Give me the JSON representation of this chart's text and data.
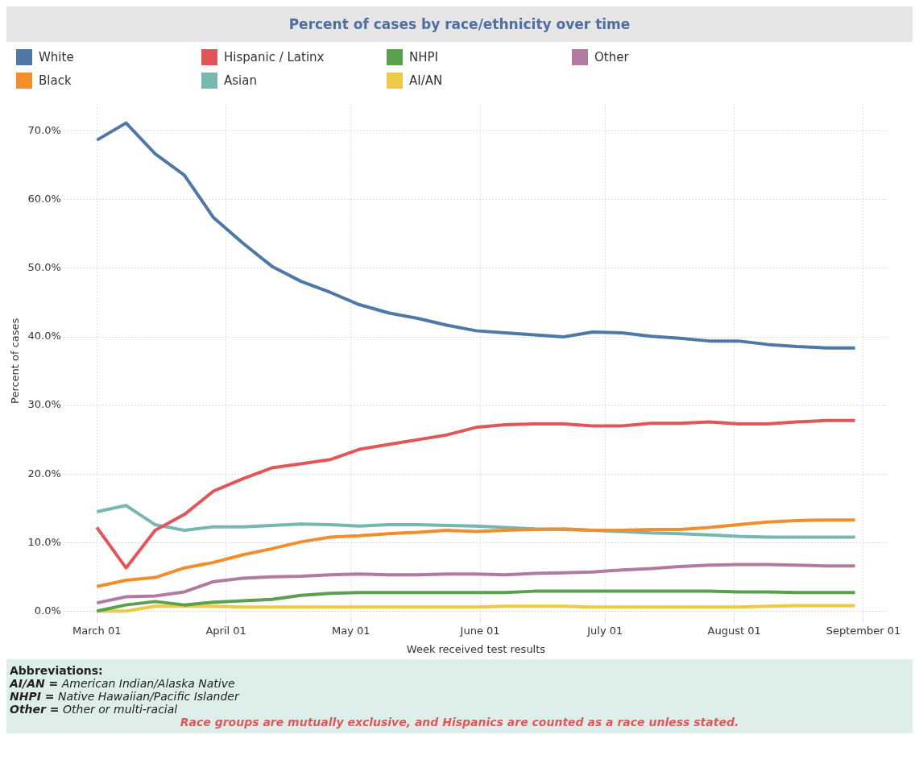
{
  "chart_data": {
    "type": "line",
    "title": "Percent of cases by race/ethnicity over time",
    "xlabel": "Week received test results",
    "ylabel": "Percent of cases",
    "x": [
      "--03-01",
      "--03-08",
      "--03-15",
      "--03-22",
      "--03-29",
      "--04-05",
      "--04-12",
      "--04-19",
      "--04-26",
      "--05-03",
      "--05-10",
      "--05-17",
      "--05-24",
      "--05-31",
      "--06-07",
      "--06-14",
      "--06-21",
      "--06-28",
      "--07-05",
      "--07-12",
      "--07-19",
      "--07-26",
      "--08-02",
      "--08-09",
      "--08-16",
      "--08-23",
      "--08-30"
    ],
    "series": [
      {
        "name": "White",
        "color": "#4e79a7",
        "values": [
          68.7,
          71.2,
          66.7,
          63.6,
          57.4,
          53.7,
          50.3,
          48.1,
          46.5,
          44.7,
          43.5,
          42.7,
          41.7,
          40.9,
          40.6,
          40.3,
          40.0,
          40.7,
          40.6,
          40.1,
          39.8,
          39.4,
          39.4,
          38.9,
          38.6,
          38.4,
          38.4
        ]
      },
      {
        "name": "Black",
        "color": "#f28e2b",
        "values": [
          3.6,
          4.5,
          4.9,
          6.3,
          7.1,
          8.2,
          9.1,
          10.1,
          10.8,
          11.0,
          11.3,
          11.5,
          11.8,
          11.6,
          11.8,
          11.9,
          12.0,
          11.8,
          11.8,
          11.9,
          11.9,
          12.2,
          12.6,
          13.0,
          13.2,
          13.3,
          13.3
        ]
      },
      {
        "name": "Hispanic / Latinx",
        "color": "#e15759",
        "values": [
          12.2,
          6.3,
          11.8,
          14.1,
          17.5,
          19.3,
          20.9,
          21.5,
          22.1,
          23.6,
          24.3,
          25.0,
          25.7,
          26.8,
          27.2,
          27.3,
          27.3,
          27.0,
          27.0,
          27.4,
          27.4,
          27.6,
          27.3,
          27.3,
          27.6,
          27.8,
          27.8
        ]
      },
      {
        "name": "Asian",
        "color": "#76b7b2",
        "values": [
          14.5,
          15.4,
          12.6,
          11.8,
          12.3,
          12.3,
          12.5,
          12.7,
          12.6,
          12.4,
          12.6,
          12.6,
          12.5,
          12.4,
          12.2,
          12.0,
          11.9,
          11.8,
          11.6,
          11.4,
          11.3,
          11.1,
          10.9,
          10.8,
          10.8,
          10.8,
          10.8
        ]
      },
      {
        "name": "NHPI",
        "color": "#59a14f",
        "values": [
          0.0,
          0.9,
          1.4,
          0.9,
          1.3,
          1.5,
          1.7,
          2.3,
          2.6,
          2.7,
          2.7,
          2.7,
          2.7,
          2.7,
          2.7,
          2.9,
          2.9,
          2.9,
          2.9,
          2.9,
          2.9,
          2.9,
          2.8,
          2.8,
          2.7,
          2.7,
          2.7
        ]
      },
      {
        "name": "AI/AN",
        "color": "#edc948",
        "values": [
          0.0,
          0.0,
          0.7,
          0.7,
          0.7,
          0.6,
          0.6,
          0.6,
          0.6,
          0.6,
          0.6,
          0.6,
          0.6,
          0.6,
          0.7,
          0.7,
          0.7,
          0.6,
          0.6,
          0.6,
          0.6,
          0.6,
          0.6,
          0.7,
          0.8,
          0.8,
          0.8
        ]
      },
      {
        "name": "Other",
        "color": "#b07aa1",
        "values": [
          1.2,
          2.1,
          2.2,
          2.8,
          4.3,
          4.8,
          5.0,
          5.1,
          5.3,
          5.4,
          5.3,
          5.3,
          5.4,
          5.4,
          5.3,
          5.5,
          5.6,
          5.7,
          6.0,
          6.2,
          6.5,
          6.7,
          6.8,
          6.8,
          6.7,
          6.6,
          6.6
        ]
      }
    ],
    "xlim": [
      "--02-22",
      "--09-07"
    ],
    "xticks": [
      {
        "value": "--03-01",
        "label": "March 01"
      },
      {
        "value": "--04-01",
        "label": "April 01"
      },
      {
        "value": "--05-01",
        "label": "May 01"
      },
      {
        "value": "--06-01",
        "label": "June 01"
      },
      {
        "value": "--07-01",
        "label": "July 01"
      },
      {
        "value": "--08-01",
        "label": "August 01"
      },
      {
        "value": "--09-01",
        "label": "September 01"
      }
    ],
    "ylim": [
      -1,
      74
    ],
    "yticks": [
      {
        "value": 0,
        "label": "0.0%"
      },
      {
        "value": 10,
        "label": "10.0%"
      },
      {
        "value": 20,
        "label": "20.0%"
      },
      {
        "value": 30,
        "label": "30.0%"
      },
      {
        "value": 40,
        "label": "40.0%"
      },
      {
        "value": 50,
        "label": "50.0%"
      },
      {
        "value": 60,
        "label": "60.0%"
      },
      {
        "value": 70,
        "label": "70.0%"
      }
    ],
    "grid": true,
    "legend": "top",
    "line_style": "solid",
    "annotations": [
      "Abbreviations:",
      "AI/AN = American Indian/Alaska Native",
      "NHPI = Native Hawaiian/Pacific Islander",
      "Other = Other or multi-racial",
      "Race groups are mutually exclusive, and Hispanics are counted as a race unless stated."
    ]
  }
}
